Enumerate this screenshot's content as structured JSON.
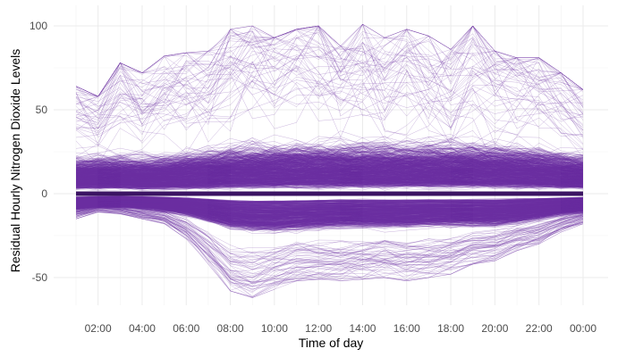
{
  "chart_data": {
    "type": "line",
    "xlabel": "Time of day",
    "ylabel": "Residual Hourly Nitrogen Dioxide Levels",
    "x_ticks": [
      "02:00",
      "04:00",
      "06:00",
      "08:00",
      "10:00",
      "12:00",
      "14:00",
      "16:00",
      "18:00",
      "20:00",
      "22:00",
      "00:00"
    ],
    "x_hours": [
      1,
      24
    ],
    "ylim": [
      -68,
      105
    ],
    "y_ticks": [
      -50,
      0,
      50,
      100
    ],
    "grid": true,
    "legend": "none",
    "series_color": "#6a2fa0",
    "mean_line_color": "#3b1463",
    "series_count": 1500,
    "envelope": {
      "hours": [
        1,
        2,
        3,
        4,
        5,
        6,
        7,
        8,
        9,
        10,
        11,
        12,
        13,
        14,
        15,
        16,
        17,
        18,
        19,
        20,
        21,
        22,
        23,
        24
      ],
      "upper_dense": [
        24,
        25,
        25,
        24,
        25,
        27,
        29,
        31,
        32,
        32,
        33,
        33,
        33,
        33,
        33,
        33,
        33,
        33,
        33,
        32,
        31,
        30,
        28,
        26
      ],
      "lower_dense": [
        -13,
        -11,
        -11,
        -12,
        -14,
        -17,
        -22,
        -27,
        -29,
        -29,
        -28,
        -27,
        -26,
        -26,
        -26,
        -26,
        -25,
        -25,
        -25,
        -25,
        -23,
        -20,
        -17,
        -15
      ],
      "upper_max": [
        64,
        58,
        78,
        72,
        82,
        84,
        85,
        98,
        100,
        93,
        98,
        100,
        88,
        101,
        93,
        98,
        94,
        86,
        100,
        85,
        81,
        81,
        72,
        62
      ],
      "lower_min": [
        -15,
        -11,
        -12,
        -15,
        -18,
        -27,
        -42,
        -58,
        -62,
        -57,
        -52,
        -51,
        -52,
        -51,
        -50,
        -52,
        -50,
        -48,
        -42,
        -40,
        -34,
        -30,
        -23,
        -18
      ]
    },
    "mean_line": {
      "hours": [
        1,
        24
      ],
      "values": [
        0,
        0
      ]
    }
  }
}
